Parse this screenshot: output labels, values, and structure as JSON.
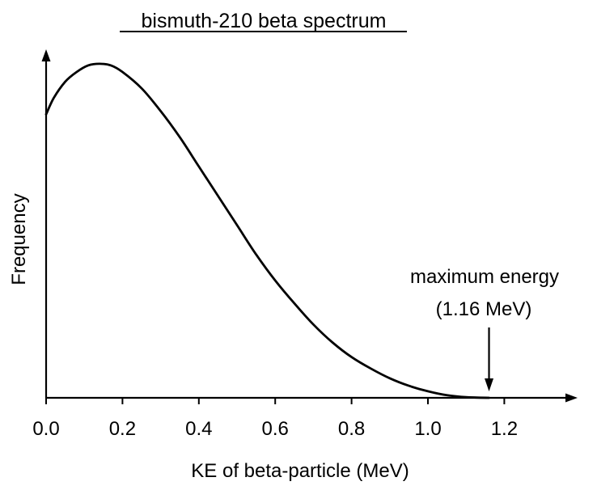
{
  "chart_data": {
    "type": "line",
    "title": "bismuth-210 beta spectrum",
    "xlabel": "KE of beta-particle (MeV)",
    "ylabel": "Frequency",
    "xlim": [
      0,
      1.4
    ],
    "ylim": [
      0,
      1.15
    ],
    "x_ticks": [
      0.0,
      0.2,
      0.4,
      0.6,
      0.8,
      1.0,
      1.2
    ],
    "x_tick_labels": [
      "0.0",
      "0.2",
      "0.4",
      "0.6",
      "0.8",
      "1.0",
      "1.2"
    ],
    "grid": false,
    "legend": "none",
    "series": [
      {
        "name": "bismuth-210 beta spectrum",
        "x": [
          0.0,
          0.02,
          0.05,
          0.08,
          0.11,
          0.14,
          0.17,
          0.2,
          0.25,
          0.3,
          0.35,
          0.4,
          0.45,
          0.5,
          0.55,
          0.6,
          0.65,
          0.7,
          0.75,
          0.8,
          0.85,
          0.9,
          0.95,
          1.0,
          1.05,
          1.1,
          1.16
        ],
        "y": [
          0.87,
          0.92,
          0.97,
          1.0,
          1.02,
          1.025,
          1.02,
          1.0,
          0.95,
          0.88,
          0.8,
          0.71,
          0.62,
          0.53,
          0.44,
          0.36,
          0.29,
          0.225,
          0.17,
          0.125,
          0.09,
          0.06,
          0.037,
          0.02,
          0.008,
          0.002,
          0.0
        ]
      }
    ],
    "annotation": {
      "line1": "maximum energy",
      "line2": "(1.16 MeV)",
      "x": 1.16
    }
  }
}
